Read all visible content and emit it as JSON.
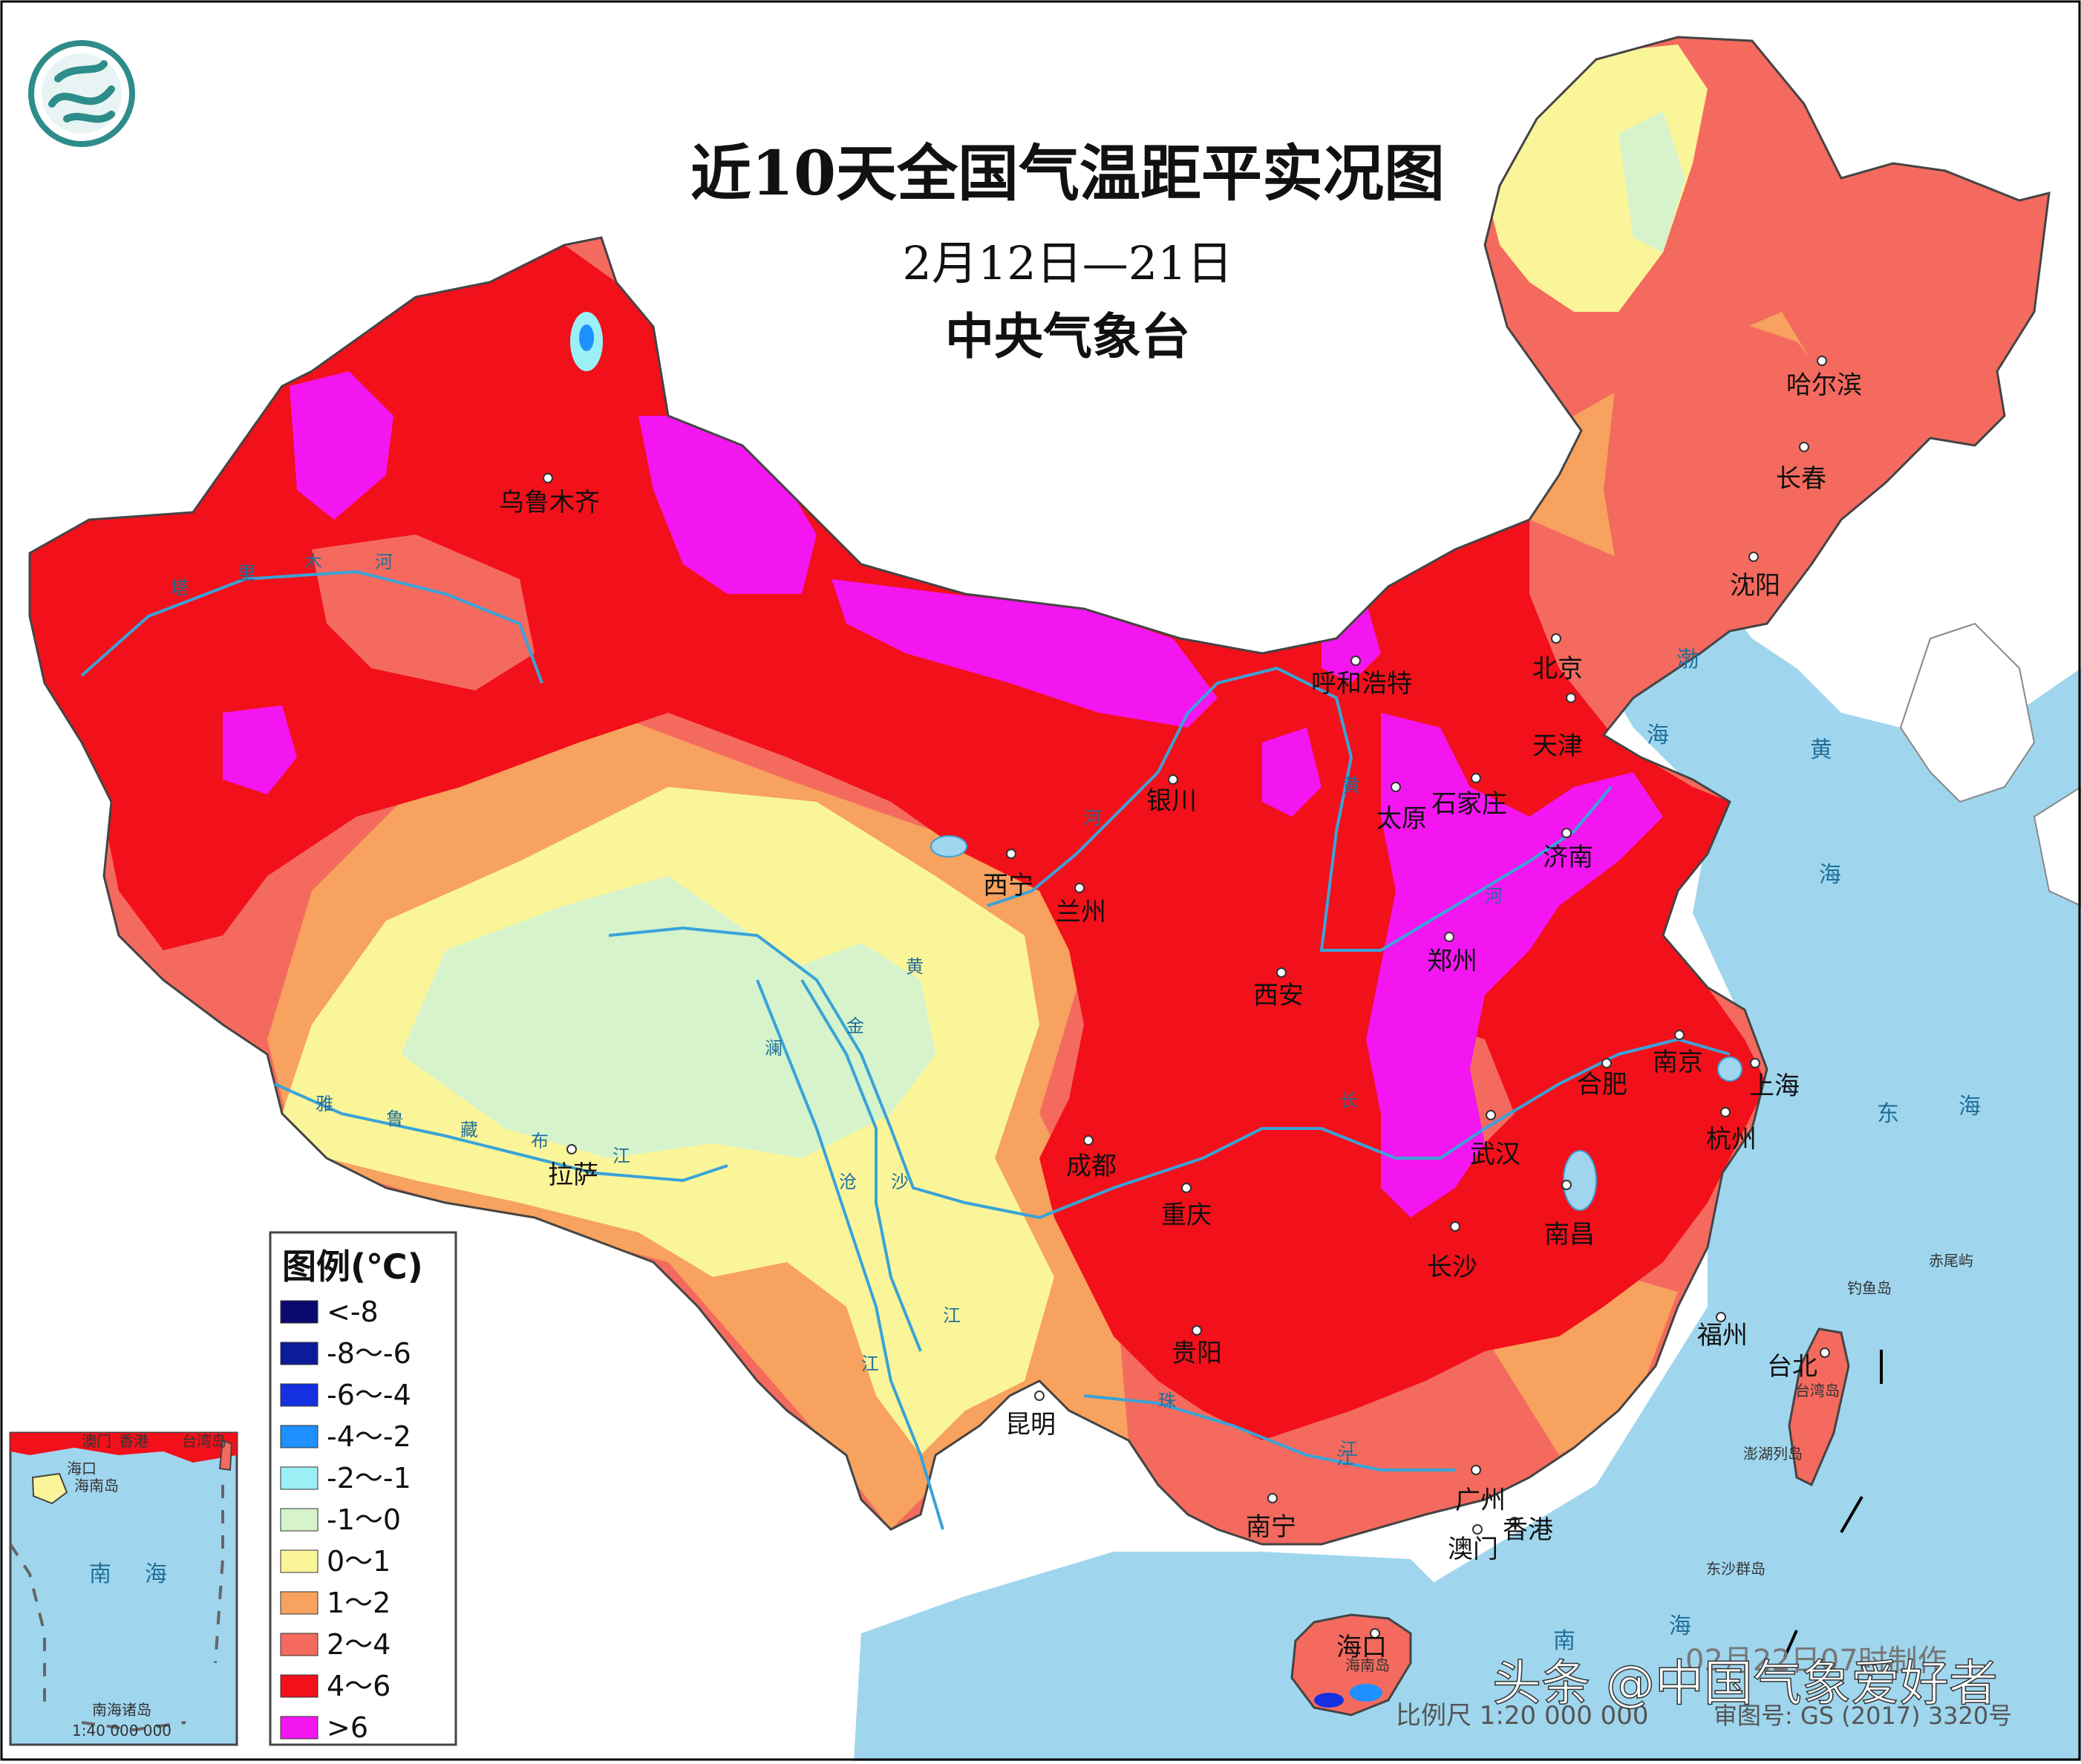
{
  "title": "近10天全国气温距平实况图",
  "date_range": "2月12日—21日",
  "agency": "中央气象台",
  "legend": {
    "title": "图例(℃)",
    "items": [
      {
        "label": "<-8",
        "color": "#0a0a6e"
      },
      {
        "label": "-8～-6",
        "color": "#0c1b9a"
      },
      {
        "label": "-6～-4",
        "color": "#1530e0"
      },
      {
        "label": "-4～-2",
        "color": "#1e90ff"
      },
      {
        "label": "-2～-1",
        "color": "#9af0f5"
      },
      {
        "label": "-1～0",
        "color": "#d6f3cc"
      },
      {
        "label": "0～1",
        "color": "#fbf59a"
      },
      {
        "label": "1～2",
        "color": "#f7a25e"
      },
      {
        "label": "2～4",
        "color": "#f46a5e"
      },
      {
        "label": "4～6",
        "color": "#f2101a"
      },
      {
        "label": ">6",
        "color": "#f316f0"
      }
    ]
  },
  "cities": {
    "wulumuqi": "乌鲁木齐",
    "haerbin": "哈尔滨",
    "changchun": "长春",
    "shenyang": "沈阳",
    "beijing": "北京",
    "tianjin": "天津",
    "huhehaote": "呼和浩特",
    "shijiazhuang": "石家庄",
    "taiyuan": "太原",
    "jinan": "济南",
    "yinchuan": "银川",
    "xining": "西宁",
    "lanzhou": "兰州",
    "xian": "西安",
    "zhengzhou": "郑州",
    "nanjing": "南京",
    "hefei": "合肥",
    "shanghai": "上海",
    "hangzhou": "杭州",
    "wuhan": "武汉",
    "nanchang": "南昌",
    "changsha": "长沙",
    "chengdu": "成都",
    "chongqing": "重庆",
    "guiyang": "贵阳",
    "kunming": "昆明",
    "lasa": "拉萨",
    "fuzhou": "福州",
    "taibei": "台北",
    "guangzhou": "广州",
    "nanning": "南宁",
    "xianggang": "香港",
    "aomen": "澳门",
    "haikou": "海口"
  },
  "seas": {
    "bo": "渤",
    "bo2": "海",
    "huang": "黄",
    "huang2": "海",
    "dong": "东",
    "dong2": "海",
    "nan": "南",
    "nan2": "海"
  },
  "rivers": {
    "tarim": [
      "塔",
      "里",
      "木",
      "河"
    ],
    "yarlung": [
      "雅",
      "鲁",
      "藏",
      "布",
      "江"
    ],
    "yellow": [
      "黄",
      "河"
    ],
    "yangtze": [
      "长",
      "江"
    ],
    "jinsha": [
      "金",
      "沙",
      "江"
    ],
    "lancang": [
      "澜",
      "沧",
      "江"
    ],
    "zhu": [
      "珠",
      "江"
    ]
  },
  "islands": {
    "chiwei": "赤尾屿",
    "diaoyu": "钓鱼岛",
    "taiwan": "台湾岛",
    "penghu": "澎湖列岛",
    "dongsha": "东沙群岛",
    "hainan": "海南岛"
  },
  "inset": {
    "labels": [
      "澳门",
      "香港",
      "台湾岛",
      "海口",
      "海南岛"
    ],
    "sea": [
      "南",
      "海"
    ],
    "name": "南海诸岛",
    "scale": "1:40 000 000"
  },
  "footer": {
    "scale": "比例尺  1:20 000 000",
    "map_no": "审图号: GS (2017) 3320号",
    "made": "02月22日07时制作"
  },
  "watermark": "头条 @中国气象爱好者",
  "colors": {
    "sea": "#9fd6ee",
    "neighbor": "#ffffff",
    "border": "#555555",
    "river": "#3aa3d8"
  }
}
